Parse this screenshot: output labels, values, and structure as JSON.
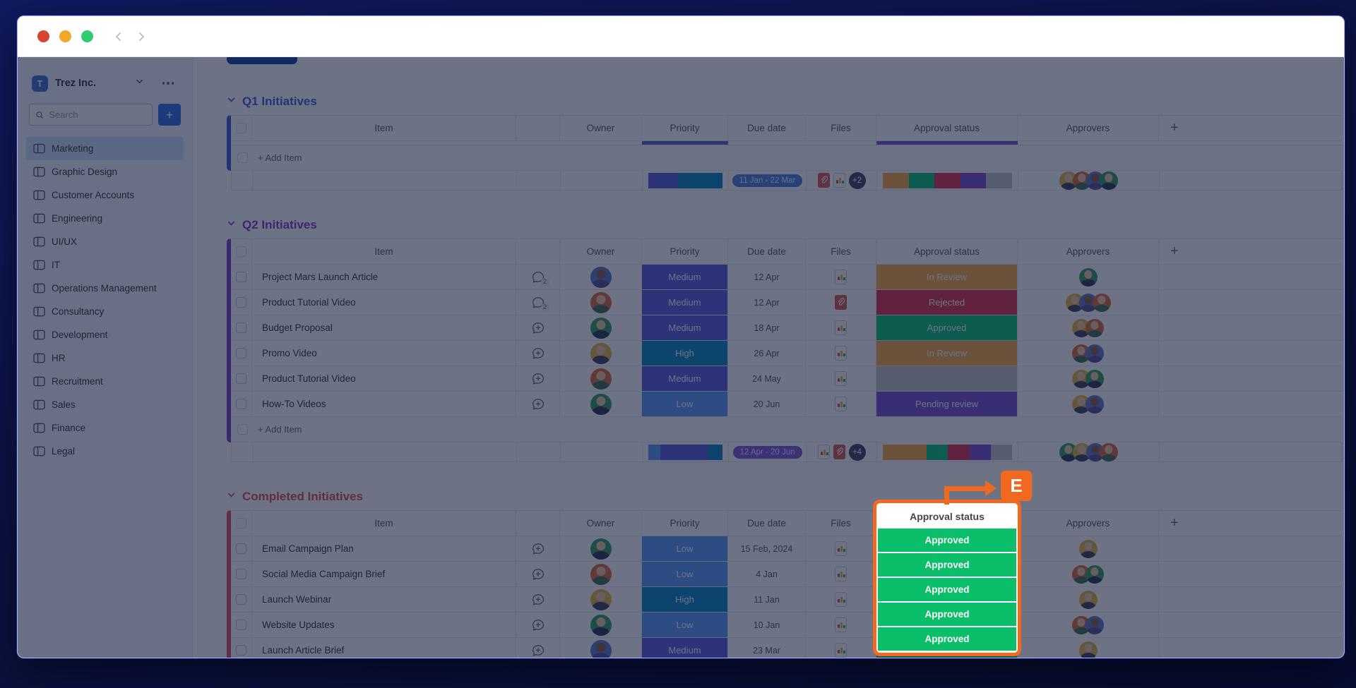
{
  "titlebar": {
    "traffic_lights": [
      "#D94430",
      "#F4A62A",
      "#2FCB71"
    ]
  },
  "sidebar": {
    "workspace_initial": "T",
    "workspace_name": "Trez Inc.",
    "search_placeholder": "Search",
    "add_button_label": "+",
    "items": [
      {
        "label": "Marketing",
        "selected": true
      },
      {
        "label": "Graphic Design",
        "selected": false
      },
      {
        "label": "Customer Accounts",
        "selected": false
      },
      {
        "label": "Engineering",
        "selected": false
      },
      {
        "label": "UI/UX",
        "selected": false
      },
      {
        "label": "IT",
        "selected": false
      },
      {
        "label": "Operations Management",
        "selected": false
      },
      {
        "label": "Consultancy",
        "selected": false
      },
      {
        "label": "Development",
        "selected": false
      },
      {
        "label": "HR",
        "selected": false
      },
      {
        "label": "Recruitment",
        "selected": false
      },
      {
        "label": "Sales",
        "selected": false
      },
      {
        "label": "Finance",
        "selected": false
      },
      {
        "label": "Legal",
        "selected": false
      }
    ]
  },
  "board": {
    "tab_color": "#0A3F9F",
    "columns": {
      "item": "Item",
      "owner": "Owner",
      "priority": "Priority",
      "due": "Due date",
      "files": "Files",
      "approval": "Approval status",
      "approvers": "Approvers",
      "add": "+"
    },
    "add_item_label": "+ Add Item",
    "avatars": {
      "yellow": {
        "bg": "#E5B83C",
        "skin": "#F2CBA4",
        "body": "#39405E"
      },
      "orange": {
        "bg": "#DD6B31",
        "skin": "#F2CBA4",
        "body": "#3C6E4F"
      },
      "green": {
        "bg": "#2E9E5B",
        "skin": "#F2CBA4",
        "body": "#2E3350"
      },
      "blue": {
        "bg": "#5878C9",
        "skin": "#8A5A3B",
        "body": "#574B8E"
      }
    },
    "groups": [
      {
        "title": "Q1 Initiatives",
        "accent": "#3B5AE0",
        "collapsed": true,
        "header_bars": {
          "priority": "#5559DF",
          "approval": "#784BD1"
        },
        "rows": [],
        "summary": {
          "priority_segments": [
            {
              "color": "#5559DF",
              "pct": 40
            },
            {
              "color": "#0086C0",
              "pct": 60
            }
          ],
          "due_range": "11 Jan - 22 Mar",
          "due_color": "#4E7FE0",
          "files": [
            "clip",
            "image"
          ],
          "files_more": "+2",
          "status_segments": [
            {
              "color": "#FDAB3D",
              "pct": 20
            },
            {
              "color": "#00C875",
              "pct": 20
            },
            {
              "color": "#DF2F4A",
              "pct": 20
            },
            {
              "color": "#784BD1",
              "pct": 20
            },
            {
              "color": "#C4C4C4",
              "pct": 20
            }
          ],
          "approvers": [
            "yellow",
            "orange",
            "blue",
            "green"
          ]
        }
      },
      {
        "title": "Q2 Initiatives",
        "accent": "#7E3BD0",
        "collapsed": false,
        "rows": [
          {
            "name": "Project Mars Launch Article",
            "chat_count": "2",
            "owner": "blue",
            "priority": {
              "label": "Medium",
              "color": "#5559DF"
            },
            "due": "12 Apr",
            "file": "image",
            "status": {
              "label": "In Review",
              "color": "#FDAB3D"
            },
            "approvers": [
              "green"
            ]
          },
          {
            "name": "Product Tutorial Video",
            "chat_count": "2",
            "owner": "orange",
            "priority": {
              "label": "Medium",
              "color": "#5559DF"
            },
            "due": "12 Apr",
            "file": "clip",
            "status": {
              "label": "Rejected",
              "color": "#DF2F4A"
            },
            "approvers": [
              "yellow",
              "blue",
              "orange"
            ]
          },
          {
            "name": "Budget Proposal",
            "chat_count": "",
            "owner": "green",
            "priority": {
              "label": "Medium",
              "color": "#5559DF"
            },
            "due": "18 Apr",
            "file": "image",
            "status": {
              "label": "Approved",
              "color": "#00C875"
            },
            "approvers": [
              "yellow",
              "orange"
            ]
          },
          {
            "name": "Promo Video",
            "chat_count": "",
            "owner": "yellow",
            "priority": {
              "label": "High",
              "color": "#0086C0"
            },
            "due": "26 Apr",
            "file": "image",
            "status": {
              "label": "In Review",
              "color": "#FDAB3D"
            },
            "approvers": [
              "orange",
              "blue"
            ]
          },
          {
            "name": "Product Tutorial Video",
            "chat_count": "",
            "owner": "orange",
            "priority": {
              "label": "Medium",
              "color": "#5559DF"
            },
            "due": "24 May",
            "file": "image",
            "status": {
              "label": "",
              "color": "#C4C4C4"
            },
            "approvers": [
              "yellow",
              "green"
            ]
          },
          {
            "name": "How-To Videos",
            "chat_count": "",
            "owner": "green",
            "priority": {
              "label": "Low",
              "color": "#579BFC"
            },
            "due": "20 Jun",
            "file": "image",
            "status": {
              "label": "Pending review",
              "color": "#784BD1"
            },
            "approvers": [
              "yellow",
              "blue"
            ]
          }
        ],
        "summary": {
          "priority_segments": [
            {
              "color": "#579BFC",
              "pct": 16
            },
            {
              "color": "#5559DF",
              "pct": 64
            },
            {
              "color": "#0086C0",
              "pct": 20
            }
          ],
          "due_range": "12 Apr - 20 Jun",
          "due_color": "#7C54D4",
          "files": [
            "image",
            "clip"
          ],
          "files_more": "+4",
          "status_segments": [
            {
              "color": "#FDAB3D",
              "pct": 34
            },
            {
              "color": "#00C875",
              "pct": 16.5
            },
            {
              "color": "#DF2F4A",
              "pct": 16.5
            },
            {
              "color": "#784BD1",
              "pct": 16.5
            },
            {
              "color": "#C4C4C4",
              "pct": 16.5
            }
          ],
          "approvers": [
            "green",
            "yellow",
            "blue",
            "orange"
          ]
        }
      },
      {
        "title": "Completed Initiatives",
        "accent": "#E2445C",
        "collapsed": false,
        "rows": [
          {
            "name": "Email Campaign Plan",
            "chat_count": "",
            "owner": "green",
            "priority": {
              "label": "Low",
              "color": "#579BFC"
            },
            "due": "15 Feb, 2024",
            "file": "image",
            "status": {
              "label": "Approved",
              "color": "#00C875"
            },
            "approvers": [
              "yellow"
            ]
          },
          {
            "name": "Social Media Campaign Brief",
            "chat_count": "",
            "owner": "orange",
            "priority": {
              "label": "Low",
              "color": "#579BFC"
            },
            "due": "4 Jan",
            "file": "image",
            "status": {
              "label": "Approved",
              "color": "#00C875"
            },
            "approvers": [
              "orange",
              "green"
            ]
          },
          {
            "name": "Launch Webinar",
            "chat_count": "",
            "owner": "yellow",
            "priority": {
              "label": "High",
              "color": "#0086C0"
            },
            "due": "11 Jan",
            "file": "image",
            "status": {
              "label": "Approved",
              "color": "#00C875"
            },
            "approvers": [
              "yellow"
            ]
          },
          {
            "name": "Website Updates",
            "chat_count": "",
            "owner": "green",
            "priority": {
              "label": "Low",
              "color": "#579BFC"
            },
            "due": "10 Jan",
            "file": "image",
            "status": {
              "label": "Approved",
              "color": "#00C875"
            },
            "approvers": [
              "orange",
              "blue"
            ]
          },
          {
            "name": "Launch Article Brief",
            "chat_count": "",
            "owner": "blue",
            "priority": {
              "label": "Medium",
              "color": "#5559DF"
            },
            "due": "23 Mar",
            "file": "image",
            "status": {
              "label": "Approved",
              "color": "#00C875"
            },
            "approvers": [
              "yellow"
            ]
          }
        ],
        "summary": null
      }
    ]
  },
  "callout": {
    "letter": "E",
    "accent": "#F0691E",
    "header_label": "Approval status",
    "cell_label": "Approved",
    "cell_color": "#0BBE69",
    "cell_count": 5
  }
}
